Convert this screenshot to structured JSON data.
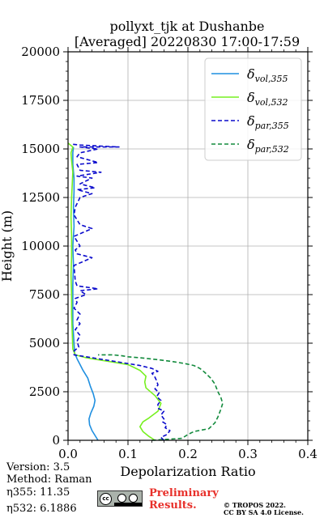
{
  "chart_data": {
    "type": "line",
    "title": "pollyxt_tjk at Dushanbe",
    "subtitle": "[Averaged] 20220830 17:00-17:59",
    "xlabel": "Depolarization Ratio",
    "ylabel": "Height (m)",
    "xlim": [
      0,
      0.4
    ],
    "ylim": [
      0,
      20000
    ],
    "x_ticks": [
      "0.0",
      "0.1",
      "0.2",
      "0.3",
      "0.4"
    ],
    "y_ticks": [
      "0",
      "2500",
      "5000",
      "7500",
      "10000",
      "12500",
      "15000",
      "17500",
      "20000"
    ],
    "grid": true,
    "legend_position": "top-right",
    "series": [
      {
        "name": "δvol,355",
        "legend_base": "δ",
        "legend_sub": "vol,355",
        "color": "#1f8fe0",
        "style": "solid",
        "points": [
          [
            0.05,
            0
          ],
          [
            0.045,
            250
          ],
          [
            0.04,
            500
          ],
          [
            0.036,
            800
          ],
          [
            0.035,
            1100
          ],
          [
            0.038,
            1400
          ],
          [
            0.043,
            1750
          ],
          [
            0.045,
            2050
          ],
          [
            0.042,
            2400
          ],
          [
            0.037,
            2800
          ],
          [
            0.033,
            3200
          ],
          [
            0.025,
            3600
          ],
          [
            0.02,
            3900
          ],
          [
            0.015,
            4200
          ],
          [
            0.011,
            4500
          ],
          [
            0.01,
            5000
          ],
          [
            0.008,
            6000
          ],
          [
            0.008,
            7000
          ],
          [
            0.008,
            8000
          ],
          [
            0.009,
            9000
          ],
          [
            0.008,
            10000
          ],
          [
            0.01,
            11000
          ],
          [
            0.009,
            12000
          ],
          [
            0.01,
            12800
          ],
          [
            0.01,
            13500
          ],
          [
            0.008,
            14200
          ],
          [
            0.008,
            14800
          ],
          [
            0.009,
            15100
          ]
        ]
      },
      {
        "name": "δvol,532",
        "legend_base": "δ",
        "legend_sub": "vol,532",
        "color": "#77f020",
        "style": "solid",
        "points": [
          [
            0.145,
            0
          ],
          [
            0.135,
            200
          ],
          [
            0.125,
            450
          ],
          [
            0.12,
            700
          ],
          [
            0.125,
            950
          ],
          [
            0.135,
            1150
          ],
          [
            0.15,
            1500
          ],
          [
            0.155,
            1900
          ],
          [
            0.145,
            2300
          ],
          [
            0.13,
            2700
          ],
          [
            0.128,
            3000
          ],
          [
            0.13,
            3300
          ],
          [
            0.12,
            3600
          ],
          [
            0.1,
            3900
          ],
          [
            0.06,
            4100
          ],
          [
            0.03,
            4250
          ],
          [
            0.012,
            4400
          ],
          [
            0.008,
            4700
          ],
          [
            0.007,
            5500
          ],
          [
            0.006,
            6500
          ],
          [
            0.006,
            7500
          ],
          [
            0.005,
            8500
          ],
          [
            0.006,
            9500
          ],
          [
            0.006,
            10500
          ],
          [
            0.005,
            11500
          ],
          [
            0.006,
            12500
          ],
          [
            0.007,
            13200
          ],
          [
            0.008,
            13800
          ],
          [
            0.006,
            14400
          ],
          [
            0.005,
            14800
          ],
          [
            0.008,
            15100
          ],
          [
            0.0,
            15300
          ]
        ]
      },
      {
        "name": "δpar,355",
        "legend_base": "δ",
        "legend_sub": "par,355",
        "color": "#0a0acc",
        "style": "dashed",
        "points": [
          [
            0.16,
            0
          ],
          [
            0.155,
            150
          ],
          [
            0.165,
            300
          ],
          [
            0.17,
            500
          ],
          [
            0.162,
            650
          ],
          [
            0.165,
            800
          ],
          [
            0.158,
            950
          ],
          [
            0.16,
            1100
          ],
          [
            0.155,
            1300
          ],
          [
            0.16,
            1500
          ],
          [
            0.15,
            1650
          ],
          [
            0.15,
            1850
          ],
          [
            0.155,
            2050
          ],
          [
            0.148,
            2250
          ],
          [
            0.152,
            2450
          ],
          [
            0.145,
            2650
          ],
          [
            0.15,
            2850
          ],
          [
            0.148,
            3050
          ],
          [
            0.145,
            3250
          ],
          [
            0.14,
            3450
          ],
          [
            0.15,
            3550
          ],
          [
            0.14,
            3700
          ],
          [
            0.12,
            3850
          ],
          [
            0.09,
            4000
          ],
          [
            0.06,
            4150
          ],
          [
            0.03,
            4300
          ],
          [
            0.01,
            4400
          ],
          [
            0.01,
            4600
          ],
          [
            0.018,
            4800
          ],
          [
            0.015,
            5100
          ],
          [
            0.02,
            5400
          ],
          [
            0.012,
            5700
          ],
          [
            0.02,
            6000
          ],
          [
            0.015,
            6200
          ],
          [
            0.02,
            6500
          ],
          [
            0.01,
            6800
          ],
          [
            0.015,
            7100
          ],
          [
            0.012,
            7300
          ],
          [
            0.03,
            7500
          ],
          [
            0.02,
            7700
          ],
          [
            0.05,
            7800
          ],
          [
            0.015,
            7950
          ],
          [
            0.012,
            8200
          ],
          [
            0.01,
            9000
          ],
          [
            0.04,
            9400
          ],
          [
            0.015,
            9600
          ],
          [
            0.012,
            9800
          ],
          [
            0.02,
            10000
          ],
          [
            0.01,
            10500
          ],
          [
            0.04,
            10900
          ],
          [
            0.02,
            11100
          ],
          [
            0.01,
            11600
          ],
          [
            0.012,
            12000
          ],
          [
            0.02,
            12500
          ],
          [
            0.04,
            12700
          ],
          [
            0.015,
            12900
          ],
          [
            0.045,
            13000
          ],
          [
            0.02,
            13200
          ],
          [
            0.04,
            13500
          ],
          [
            0.015,
            13600
          ],
          [
            0.055,
            13800
          ],
          [
            0.02,
            13900
          ],
          [
            0.015,
            14200
          ],
          [
            0.05,
            14300
          ],
          [
            0.015,
            14600
          ],
          [
            0.02,
            14800
          ],
          [
            0.05,
            15000
          ],
          [
            0.02,
            15100
          ],
          [
            0.085,
            15100
          ],
          [
            0.02,
            15200
          ],
          [
            0.005,
            15250
          ]
        ]
      },
      {
        "name": "δpar,532",
        "legend_base": "δ",
        "legend_sub": "par,532",
        "color": "#128a3c",
        "style": "dashed",
        "points": [
          [
            0.14,
            0
          ],
          [
            0.19,
            100
          ],
          [
            0.2,
            300
          ],
          [
            0.21,
            450
          ],
          [
            0.235,
            600
          ],
          [
            0.245,
            900
          ],
          [
            0.25,
            1200
          ],
          [
            0.255,
            1600
          ],
          [
            0.258,
            1900
          ],
          [
            0.255,
            2200
          ],
          [
            0.25,
            2500
          ],
          [
            0.245,
            2900
          ],
          [
            0.238,
            3200
          ],
          [
            0.228,
            3500
          ],
          [
            0.22,
            3700
          ],
          [
            0.21,
            3850
          ],
          [
            0.195,
            3950
          ],
          [
            0.175,
            4050
          ],
          [
            0.15,
            4150
          ],
          [
            0.12,
            4250
          ],
          [
            0.1,
            4300
          ],
          [
            0.09,
            4350
          ],
          [
            0.075,
            4400
          ],
          [
            0.05,
            4400
          ]
        ]
      }
    ]
  },
  "annotations": {
    "version": "Version: 3.5",
    "method": "Method: Raman",
    "eta355": "η355:  11.35",
    "eta532": "η532: 6.1886",
    "preliminary_line1": "Preliminary",
    "preliminary_line2": "Results.",
    "credit_line1": "© TROPOS 2022.",
    "credit_line2": "CC BY SA 4.0 License.",
    "cc_logo": "cc-by-sa-logo"
  }
}
